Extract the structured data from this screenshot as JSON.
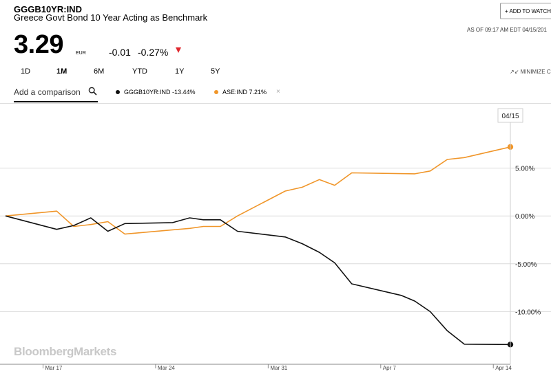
{
  "header": {
    "ticker": "GGGB10YR:IND",
    "title": "Greece Govt Bond 10 Year Acting as Benchmark",
    "add_watch_label": "+ ADD TO WATCH",
    "as_of": "AS OF 09:17 AM EDT 04/15/201",
    "price": "3.29",
    "currency": "EUR",
    "change": "-0.01",
    "change_pct": "-0.27%"
  },
  "ranges": [
    "1D",
    "1M",
    "6M",
    "YTD",
    "1Y",
    "5Y"
  ],
  "active_range": "1M",
  "minimize_label": "MINIMIZE C",
  "comparison": {
    "placeholder": "Add a comparison",
    "legend": [
      {
        "label": "GGGB10YR:IND -13.44%",
        "color": "#111111"
      },
      {
        "label": "ASE:IND 7.21%",
        "color": "#f0962a"
      }
    ]
  },
  "watermark": "BloombergMarkets",
  "colors": {
    "primary": "#111111",
    "comparison": "#f0962a",
    "down": "#e0282e"
  },
  "chart_data": {
    "type": "line",
    "hover_date_label": "04/15",
    "ytick_labels": [
      "5.00%",
      "0.00%",
      "-5.00%",
      "-10.00%"
    ],
    "yticks": [
      5,
      0,
      -5,
      -10
    ],
    "ylim": [
      -15.5,
      10.5
    ],
    "xlim": [
      0,
      29.6
    ],
    "xticks": [
      {
        "label": "Mar 17",
        "x": 2.2
      },
      {
        "label": "Mar 24",
        "x": 8.8
      },
      {
        "label": "Mar 31",
        "x": 15.4
      },
      {
        "label": "Apr 7",
        "x": 22.0
      },
      {
        "label": "Apr 14",
        "x": 28.6
      }
    ],
    "grid": true,
    "series": [
      {
        "name": "GGGB10YR:IND",
        "color": "#111111",
        "change_pct": -13.44,
        "x": [
          0,
          3.0,
          4.0,
          5.0,
          6.0,
          7.0,
          9.8,
          10.8,
          11.6,
          12.6,
          13.6,
          16.4,
          17.4,
          18.4,
          19.3,
          20.3,
          23.2,
          24.0,
          24.9,
          25.9,
          26.9,
          29.6
        ],
        "values": [
          0.0,
          -1.4,
          -1.0,
          -0.2,
          -1.6,
          -0.8,
          -0.7,
          -0.2,
          -0.4,
          -0.4,
          -1.6,
          -2.2,
          -2.9,
          -3.8,
          -4.9,
          -7.1,
          -8.3,
          -8.9,
          -10.0,
          -12.0,
          -13.4,
          -13.44
        ]
      },
      {
        "name": "ASE:IND",
        "color": "#f0962a",
        "change_pct": 7.21,
        "x": [
          0,
          3.0,
          4.0,
          5.0,
          6.0,
          7.0,
          10.8,
          11.6,
          12.6,
          13.6,
          16.4,
          17.4,
          18.4,
          19.3,
          20.3,
          24.0,
          24.9,
          25.9,
          26.9,
          29.6
        ],
        "values": [
          0.0,
          0.5,
          -1.1,
          -0.9,
          -0.6,
          -1.9,
          -1.3,
          -1.1,
          -1.1,
          0.0,
          2.6,
          3.0,
          3.8,
          3.2,
          4.5,
          4.4,
          4.7,
          5.9,
          6.1,
          7.21
        ]
      }
    ]
  }
}
